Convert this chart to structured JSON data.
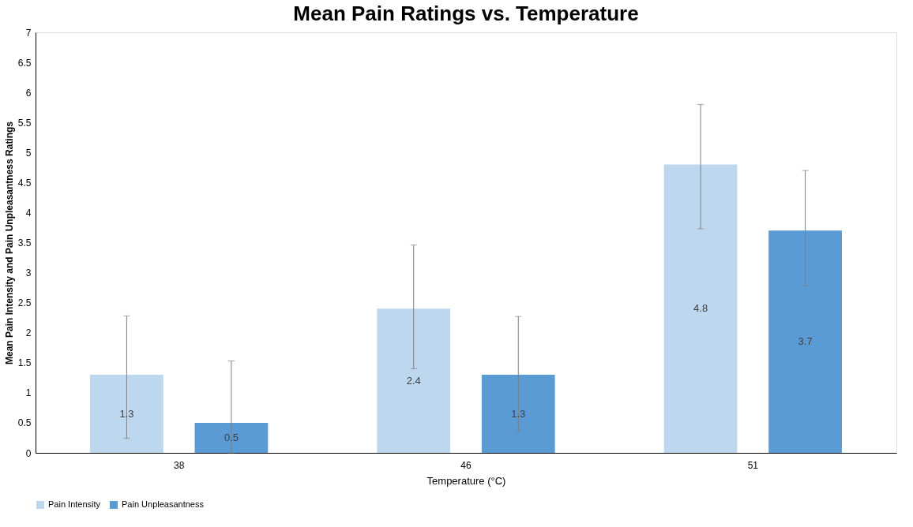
{
  "chart_data": {
    "type": "bar",
    "title": "Mean Pain Ratings vs. Temperature",
    "xlabel": "Temperature (°C)",
    "ylabel": "Mean Pain Intensity and Pain Unpleasantness Ratings",
    "categories": [
      "38",
      "46",
      "51"
    ],
    "series": [
      {
        "name": "Pain Intensity",
        "color": "#bdd7ee",
        "values": [
          1.3,
          2.4,
          4.8
        ],
        "errors": [
          [
            0.24,
            2.28
          ],
          [
            1.4,
            3.46
          ],
          [
            3.73,
            5.8
          ]
        ]
      },
      {
        "name": "Pain Unpleasantness",
        "color": "#5b9bd5",
        "values": [
          0.5,
          1.3,
          3.7
        ],
        "errors": [
          [
            0,
            1.53
          ],
          [
            0.35,
            2.27
          ],
          [
            2.78,
            4.7
          ]
        ]
      }
    ],
    "ylim": [
      0,
      7
    ],
    "yticks": [
      0,
      0.5,
      1,
      1.5,
      2,
      2.5,
      3,
      3.5,
      4,
      4.5,
      5,
      5.5,
      6,
      6.5,
      7
    ],
    "data_labels": true,
    "grid": false,
    "legend": "bottom"
  }
}
